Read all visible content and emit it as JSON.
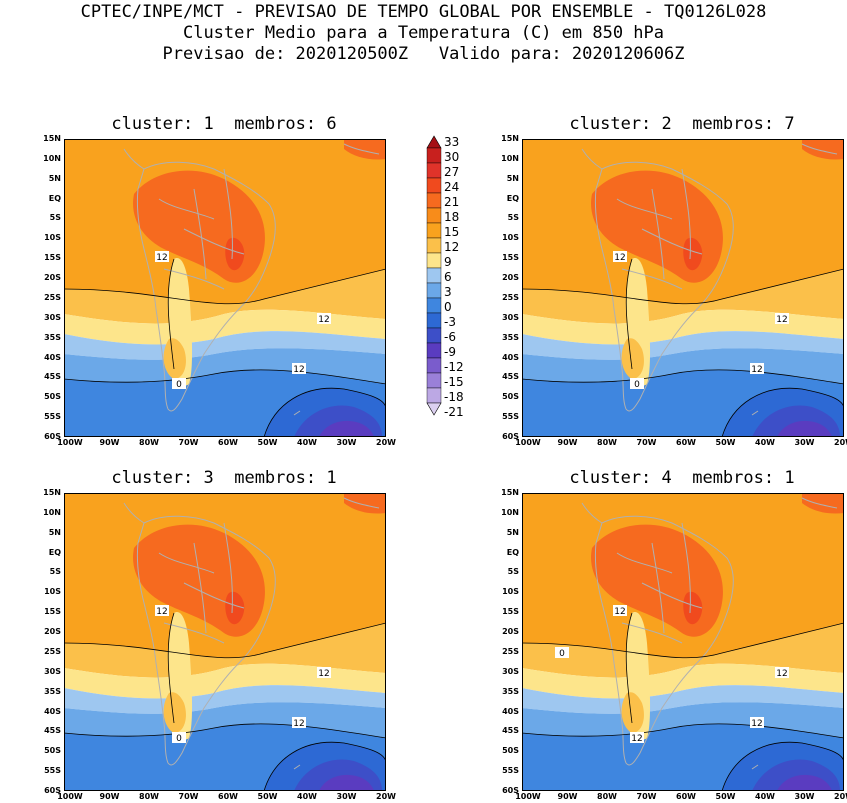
{
  "title": {
    "line1": "CPTEC/INPE/MCT - PREVISAO DE TEMPO GLOBAL POR ENSEMBLE - TQ0126L028",
    "line2": "Cluster Medio para a Temperatura (C) em 850 hPa",
    "line3": "Previsao de: 2020120500Z   Valido para: 2020120606Z"
  },
  "panels": [
    {
      "title": "cluster: 1  membros: 6",
      "contour_labels": [
        "12",
        "12",
        "12",
        "0"
      ]
    },
    {
      "title": "cluster: 2  membros: 7",
      "contour_labels": [
        "12",
        "12",
        "12",
        "0"
      ]
    },
    {
      "title": "cluster: 3  membros: 1",
      "contour_labels": [
        "12",
        "12",
        "12",
        "0"
      ]
    },
    {
      "title": "cluster: 4  membros: 1",
      "contour_labels": [
        "12",
        "12",
        "12",
        "12",
        "0"
      ]
    }
  ],
  "lat_ticks": [
    "15N",
    "10N",
    "5N",
    "EQ",
    "5S",
    "10S",
    "15S",
    "20S",
    "25S",
    "30S",
    "35S",
    "40S",
    "45S",
    "50S",
    "55S",
    "60S"
  ],
  "lon_ticks": [
    "100W",
    "90W",
    "80W",
    "70W",
    "60W",
    "50W",
    "40W",
    "30W",
    "20W"
  ],
  "colorbar": {
    "levels": [
      "33",
      "30",
      "27",
      "24",
      "21",
      "18",
      "15",
      "12",
      "9",
      "6",
      "3",
      "0",
      "-3",
      "-6",
      "-9",
      "-12",
      "-15",
      "-18",
      "-21"
    ],
    "colors": [
      "#a50f15",
      "#c8201e",
      "#e0332a",
      "#f04a1e",
      "#f66a1f",
      "#f88c1a",
      "#f9a21e",
      "#fbc04a",
      "#fde58b",
      "#9ec7f0",
      "#6ba8e8",
      "#3f86df",
      "#2d69d4",
      "#3d4fc8",
      "#5a3cc0",
      "#7a5ccc",
      "#9a80d8",
      "#bca8e4",
      "#dcd0f0"
    ]
  }
}
